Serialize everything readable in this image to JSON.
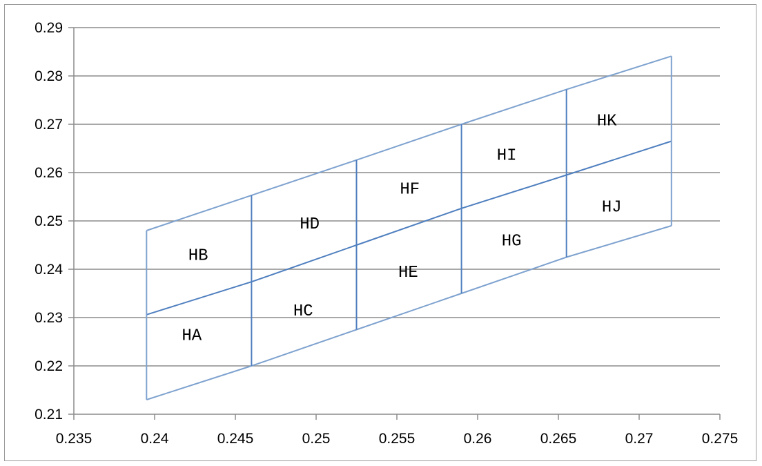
{
  "chart_data": {
    "type": "line",
    "title": "",
    "xlabel": "",
    "ylabel": "",
    "xlim": [
      0.235,
      0.275
    ],
    "ylim": [
      0.21,
      0.29
    ],
    "x_ticks": [
      "0.235",
      "0.24",
      "0.245",
      "0.25",
      "0.255",
      "0.26",
      "0.265",
      "0.27",
      "0.275"
    ],
    "x_tick_values": [
      0.235,
      0.24,
      0.245,
      0.25,
      0.255,
      0.26,
      0.265,
      0.27,
      0.275
    ],
    "y_ticks": [
      "0.21",
      "0.22",
      "0.23",
      "0.24",
      "0.25",
      "0.26",
      "0.27",
      "0.28",
      "0.29"
    ],
    "y_tick_values": [
      0.21,
      0.22,
      0.23,
      0.24,
      0.25,
      0.26,
      0.27,
      0.28,
      0.29
    ],
    "grid": "horizontal",
    "series": [
      {
        "x": [
          0.2395,
          0.246,
          0.2525,
          0.259,
          0.2655,
          0.272
        ],
        "y": [
          0.248,
          0.2553,
          0.2626,
          0.27,
          0.2772,
          0.2841
        ]
      },
      {
        "x": [
          0.2395,
          0.246,
          0.2525,
          0.259,
          0.2655,
          0.272
        ],
        "y": [
          0.2306,
          0.2374,
          0.245,
          0.2526,
          0.2595,
          0.2665
        ]
      },
      {
        "x": [
          0.2395,
          0.246,
          0.2525,
          0.259,
          0.2655,
          0.272
        ],
        "y": [
          0.213,
          0.22,
          0.2275,
          0.235,
          0.2425,
          0.249
        ]
      }
    ],
    "vertical_segments": [
      {
        "x": 0.2395,
        "y_bottom": 0.213,
        "y_top": 0.248
      },
      {
        "x": 0.246,
        "y_bottom": 0.22,
        "y_top": 0.2553
      },
      {
        "x": 0.2525,
        "y_bottom": 0.2275,
        "y_top": 0.2626
      },
      {
        "x": 0.259,
        "y_bottom": 0.235,
        "y_top": 0.27
      },
      {
        "x": 0.2655,
        "y_bottom": 0.2425,
        "y_top": 0.2772
      },
      {
        "x": 0.272,
        "y_bottom": 0.249,
        "y_top": 0.2841
      }
    ],
    "regions": [
      {
        "label": "HA",
        "x": 0.2423,
        "y": 0.2265
      },
      {
        "label": "HB",
        "x": 0.2427,
        "y": 0.2431
      },
      {
        "label": "HC",
        "x": 0.2492,
        "y": 0.2316
      },
      {
        "label": "HD",
        "x": 0.2496,
        "y": 0.2496
      },
      {
        "label": "HE",
        "x": 0.2557,
        "y": 0.2396
      },
      {
        "label": "HF",
        "x": 0.2558,
        "y": 0.2568
      },
      {
        "label": "HG",
        "x": 0.2621,
        "y": 0.2461
      },
      {
        "label": "HI",
        "x": 0.2618,
        "y": 0.2638
      },
      {
        "label": "HJ",
        "x": 0.2683,
        "y": 0.2531
      },
      {
        "label": "HK",
        "x": 0.268,
        "y": 0.2709
      }
    ],
    "colors": {
      "outline": "#7ea2cf",
      "dividers": "#4f7fbf",
      "grid": "#8c8c8c"
    }
  }
}
